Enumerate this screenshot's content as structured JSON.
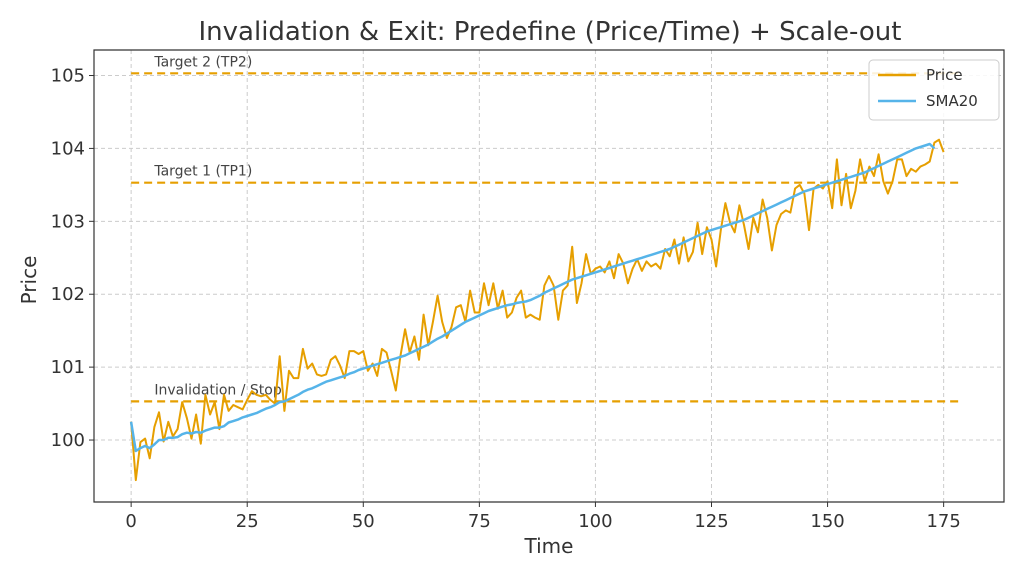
{
  "chart_data": {
    "type": "line",
    "title": "Invalidation & Exit: Predefine (Price/Time) + Scale-out",
    "xlabel": "Time",
    "ylabel": "Price",
    "xlim": [
      -8,
      188
    ],
    "ylim": [
      99.15,
      105.35
    ],
    "xticks": [
      0,
      25,
      50,
      75,
      100,
      125,
      150,
      175
    ],
    "yticks": [
      100,
      101,
      102,
      103,
      104,
      105
    ],
    "grid": true,
    "legend_position": "top-right",
    "colors": {
      "price": "#E69F00",
      "sma": "#56B4E9",
      "levels": "#E69F00",
      "grid": "#cccccc"
    },
    "horizontal_lines": [
      {
        "name": "Target 2 (TP2)",
        "y": 105.03
      },
      {
        "name": "Target 1 (TP1)",
        "y": 103.53
      },
      {
        "name": "Invalidation / Stop",
        "y": 100.53
      }
    ],
    "series": [
      {
        "name": "Price",
        "x_start": 0,
        "values": [
          100.25,
          99.45,
          99.97,
          100.02,
          99.75,
          100.18,
          100.38,
          99.98,
          100.25,
          100.05,
          100.15,
          100.52,
          100.3,
          100.02,
          100.35,
          99.95,
          100.62,
          100.35,
          100.52,
          100.15,
          100.62,
          100.4,
          100.48,
          100.45,
          100.42,
          100.55,
          100.67,
          100.62,
          100.6,
          100.62,
          100.55,
          100.5,
          101.15,
          100.4,
          100.95,
          100.85,
          100.85,
          101.25,
          100.98,
          101.05,
          100.9,
          100.88,
          100.9,
          101.1,
          101.15,
          101.02,
          100.85,
          101.22,
          101.22,
          101.18,
          101.22,
          100.95,
          101.05,
          100.88,
          101.25,
          101.2,
          100.95,
          100.68,
          101.15,
          101.52,
          101.2,
          101.42,
          101.1,
          101.72,
          101.3,
          101.62,
          101.98,
          101.62,
          101.4,
          101.55,
          101.82,
          101.85,
          101.62,
          102.05,
          101.75,
          101.75,
          102.15,
          101.85,
          102.15,
          101.8,
          102.05,
          101.68,
          101.75,
          101.95,
          102.05,
          101.68,
          101.72,
          101.68,
          101.65,
          102.12,
          102.25,
          102.12,
          101.65,
          102.05,
          102.12,
          102.65,
          101.88,
          102.15,
          102.55,
          102.28,
          102.35,
          102.38,
          102.3,
          102.45,
          102.22,
          102.55,
          102.42,
          102.15,
          102.35,
          102.48,
          102.32,
          102.45,
          102.38,
          102.42,
          102.35,
          102.62,
          102.52,
          102.75,
          102.42,
          102.78,
          102.45,
          102.58,
          102.98,
          102.55,
          102.92,
          102.75,
          102.38,
          102.88,
          103.25,
          102.98,
          102.85,
          103.22,
          102.95,
          102.62,
          103.05,
          102.85,
          103.3,
          103.05,
          102.6,
          102.95,
          103.1,
          103.15,
          103.12,
          103.45,
          103.5,
          103.38,
          102.88,
          103.45,
          103.5,
          103.45,
          103.55,
          103.18,
          103.85,
          103.22,
          103.65,
          103.18,
          103.42,
          103.85,
          103.55,
          103.75,
          103.62,
          103.92,
          103.55,
          103.38,
          103.55,
          103.85,
          103.85,
          103.62,
          103.72,
          103.68,
          103.75,
          103.78,
          103.82,
          104.08,
          104.12,
          103.95
        ]
      },
      {
        "name": "SMA20",
        "x_start": 0,
        "values": [
          100.25,
          99.85,
          99.89,
          99.92,
          99.89,
          99.94,
          100.0,
          100.0,
          100.03,
          100.03,
          100.04,
          100.08,
          100.1,
          100.09,
          100.11,
          100.1,
          100.13,
          100.15,
          100.17,
          100.17,
          100.19,
          100.24,
          100.26,
          100.28,
          100.31,
          100.33,
          100.35,
          100.37,
          100.4,
          100.43,
          100.45,
          100.48,
          100.52,
          100.53,
          100.56,
          100.59,
          100.62,
          100.66,
          100.69,
          100.71,
          100.74,
          100.77,
          100.8,
          100.82,
          100.84,
          100.86,
          100.88,
          100.91,
          100.93,
          100.96,
          100.98,
          101.0,
          101.02,
          101.04,
          101.06,
          101.08,
          101.1,
          101.12,
          101.14,
          101.16,
          101.19,
          101.22,
          101.25,
          101.28,
          101.31,
          101.35,
          101.39,
          101.42,
          101.46,
          101.5,
          101.54,
          101.58,
          101.62,
          101.65,
          101.68,
          101.71,
          101.74,
          101.77,
          101.79,
          101.81,
          101.83,
          101.85,
          101.86,
          101.88,
          101.89,
          101.9,
          101.92,
          101.95,
          101.98,
          102.02,
          102.05,
          102.08,
          102.11,
          102.14,
          102.17,
          102.2,
          102.22,
          102.24,
          102.26,
          102.28,
          102.3,
          102.32,
          102.34,
          102.36,
          102.38,
          102.4,
          102.42,
          102.44,
          102.46,
          102.48,
          102.5,
          102.52,
          102.54,
          102.56,
          102.58,
          102.6,
          102.62,
          102.65,
          102.68,
          102.71,
          102.74,
          102.77,
          102.8,
          102.83,
          102.86,
          102.88,
          102.9,
          102.92,
          102.94,
          102.96,
          102.98,
          103.0,
          103.02,
          103.05,
          103.08,
          103.11,
          103.14,
          103.17,
          103.2,
          103.23,
          103.26,
          103.29,
          103.32,
          103.35,
          103.38,
          103.41,
          103.43,
          103.45,
          103.47,
          103.49,
          103.51,
          103.53,
          103.55,
          103.57,
          103.59,
          103.61,
          103.63,
          103.65,
          103.67,
          103.7,
          103.73,
          103.76,
          103.79,
          103.82,
          103.85,
          103.88,
          103.91,
          103.94,
          103.97,
          104.0,
          104.02,
          104.04,
          104.06,
          104.0
        ]
      }
    ]
  }
}
